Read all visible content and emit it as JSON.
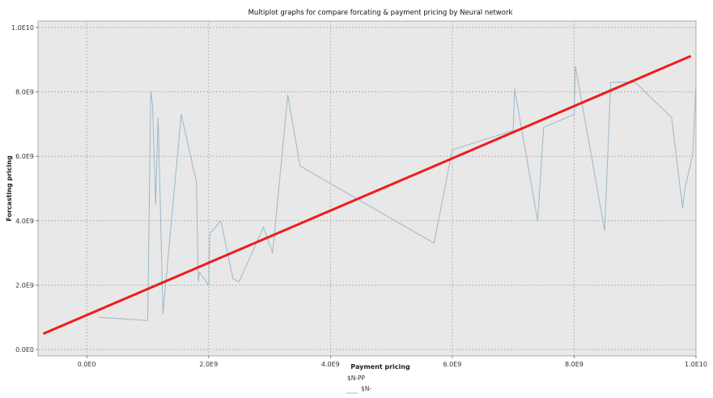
{
  "chart_data": {
    "type": "line",
    "title": "Multiplot graphs for compare forcating & payment pricing by Neural network",
    "xlabel": "Payment pricing",
    "ylabel": "Forcasting pricing",
    "xlim": [
      -0.08,
      1.0
    ],
    "ylim": [
      -0.02,
      1.02
    ],
    "x_ticks": [
      0.0,
      0.2,
      0.4,
      0.6,
      0.8,
      1.0
    ],
    "x_tick_labels": [
      "0.0E0",
      "2.0E9",
      "4.0E9",
      "6.0E9",
      "8.0E9",
      "1.0E10"
    ],
    "y_ticks": [
      0.0,
      0.2,
      0.4,
      0.6,
      0.8,
      1.0
    ],
    "y_tick_labels": [
      "0.0E0",
      "2.0E9",
      "4.0E9",
      "6.0E9",
      "8.0E9",
      "1.0E10"
    ],
    "grid": true,
    "legend": {
      "position": "bottom-center",
      "title": "$N-PP",
      "entries": [
        {
          "label": "$N-",
          "color": "#9bb8c8"
        }
      ]
    },
    "series": [
      {
        "name": "$N-",
        "style": "line",
        "color": "#9bb8c8",
        "x": [
          0.02,
          0.1,
          0.105,
          0.108,
          0.113,
          0.117,
          0.12,
          0.125,
          0.155,
          0.18,
          0.183,
          0.185,
          0.2,
          0.202,
          0.22,
          0.24,
          0.25,
          0.29,
          0.305,
          0.33,
          0.35,
          0.57,
          0.6,
          0.7,
          0.702,
          0.74,
          0.75,
          0.8,
          0.802,
          0.85,
          0.86,
          0.862,
          0.9,
          0.96,
          0.978,
          0.982,
          0.995,
          1.0
        ],
        "y": [
          0.1,
          0.09,
          0.8,
          0.76,
          0.45,
          0.72,
          0.5,
          0.11,
          0.73,
          0.52,
          0.21,
          0.24,
          0.2,
          0.36,
          0.4,
          0.22,
          0.21,
          0.38,
          0.3,
          0.79,
          0.57,
          0.33,
          0.62,
          0.68,
          0.81,
          0.4,
          0.69,
          0.73,
          0.88,
          0.37,
          0.83,
          0.83,
          0.83,
          0.72,
          0.44,
          0.5,
          0.61,
          0.83
        ]
      },
      {
        "name": "",
        "style": "regression",
        "color": "#ee1c1c",
        "x": [
          -0.07,
          0.99
        ],
        "y": [
          0.05,
          0.91
        ]
      }
    ]
  },
  "colors": {
    "plot_background": "#e8e8e8",
    "grid": "#aaaaaa",
    "regression": "#ee1c1c",
    "series_line": "#9bb8c8"
  }
}
